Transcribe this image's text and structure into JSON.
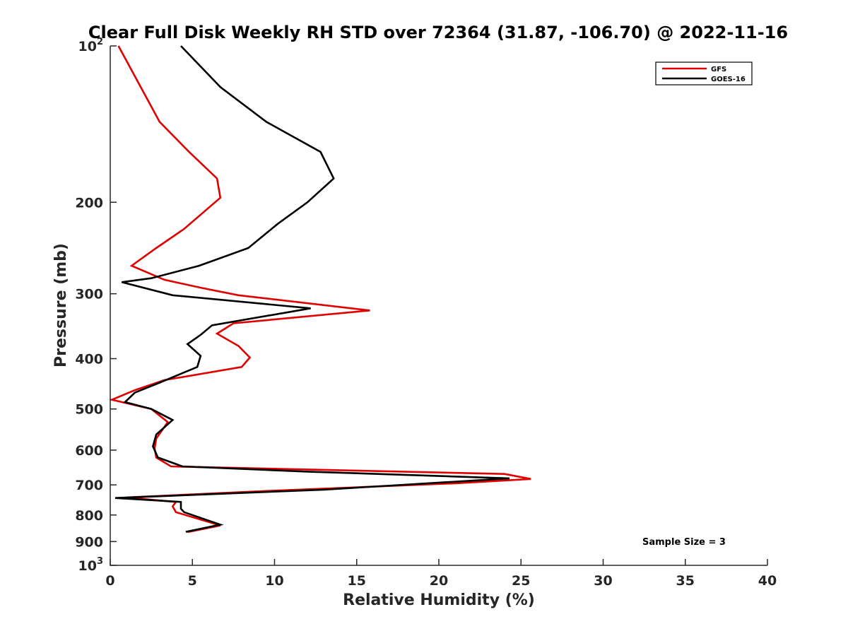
{
  "chart_data": {
    "type": "line",
    "title": "Clear Full Disk Weekly RH STD over 72364 (31.87, -106.70) @ 2022-11-16",
    "xlabel": "Relative Humidity (%)",
    "ylabel": "Pressure (mb)",
    "xlim": [
      0,
      40
    ],
    "ylim": [
      100,
      1000
    ],
    "yscale": "log",
    "yreversed": true,
    "grid": false,
    "legend_position": "top-right",
    "x_ticks": [
      "0",
      "5",
      "10",
      "15",
      "20",
      "25",
      "30",
      "35",
      "40"
    ],
    "y_ticks": [
      {
        "value": 100,
        "base": "10",
        "exp": "2"
      },
      {
        "value": 200,
        "label": "200"
      },
      {
        "value": 300,
        "label": "300"
      },
      {
        "value": 400,
        "label": "400"
      },
      {
        "value": 500,
        "label": "500"
      },
      {
        "value": 600,
        "label": "600"
      },
      {
        "value": 700,
        "label": "700"
      },
      {
        "value": 800,
        "label": "800"
      },
      {
        "value": 900,
        "label": "900"
      },
      {
        "value": 1000,
        "base": "10",
        "exp": "3"
      }
    ],
    "series": [
      {
        "name": "GFS",
        "color": "#e00000",
        "points": [
          [
            0.5,
            100
          ],
          [
            3.0,
            140
          ],
          [
            4.8,
            160
          ],
          [
            6.5,
            180
          ],
          [
            6.7,
            196
          ],
          [
            4.5,
            225
          ],
          [
            2.8,
            245
          ],
          [
            1.3,
            265
          ],
          [
            3.3,
            282
          ],
          [
            5.5,
            292
          ],
          [
            7.8,
            302
          ],
          [
            15.8,
            323
          ],
          [
            7.5,
            342
          ],
          [
            6.5,
            358
          ],
          [
            7.8,
            378
          ],
          [
            8.5,
            398
          ],
          [
            8.0,
            415
          ],
          [
            3.3,
            440
          ],
          [
            1.5,
            460
          ],
          [
            0.1,
            480
          ],
          [
            2.5,
            500
          ],
          [
            3.5,
            530
          ],
          [
            2.8,
            570
          ],
          [
            2.7,
            595
          ],
          [
            2.8,
            620
          ],
          [
            3.7,
            645
          ],
          [
            24.0,
            667
          ],
          [
            25.6,
            682
          ],
          [
            21.0,
            695
          ],
          [
            10.0,
            718
          ],
          [
            1.0,
            740
          ],
          [
            4.0,
            755
          ],
          [
            3.8,
            770
          ],
          [
            4.0,
            790
          ],
          [
            6.7,
            838
          ],
          [
            4.7,
            863
          ]
        ]
      },
      {
        "name": "GOES-16",
        "color": "#000000",
        "points": [
          [
            4.3,
            100
          ],
          [
            6.7,
            120
          ],
          [
            9.5,
            140
          ],
          [
            12.8,
            160
          ],
          [
            13.6,
            180
          ],
          [
            12.0,
            200
          ],
          [
            10.2,
            220
          ],
          [
            8.4,
            245
          ],
          [
            5.4,
            265
          ],
          [
            2.5,
            280
          ],
          [
            0.7,
            285
          ],
          [
            3.8,
            302
          ],
          [
            12.2,
            320
          ],
          [
            6.2,
            345
          ],
          [
            5.5,
            360
          ],
          [
            4.7,
            375
          ],
          [
            5.5,
            395
          ],
          [
            5.3,
            415
          ],
          [
            3.0,
            445
          ],
          [
            1.5,
            465
          ],
          [
            0.9,
            485
          ],
          [
            2.5,
            500
          ],
          [
            3.8,
            525
          ],
          [
            2.8,
            560
          ],
          [
            2.6,
            590
          ],
          [
            2.9,
            620
          ],
          [
            4.4,
            645
          ],
          [
            12.0,
            660
          ],
          [
            24.3,
            680
          ],
          [
            13.0,
            715
          ],
          [
            0.3,
            742
          ],
          [
            4.3,
            755
          ],
          [
            4.3,
            778
          ],
          [
            4.5,
            790
          ],
          [
            6.7,
            835
          ],
          [
            4.6,
            862
          ]
        ]
      }
    ],
    "annotations": [
      {
        "text": "Sample Size = 3"
      }
    ]
  }
}
